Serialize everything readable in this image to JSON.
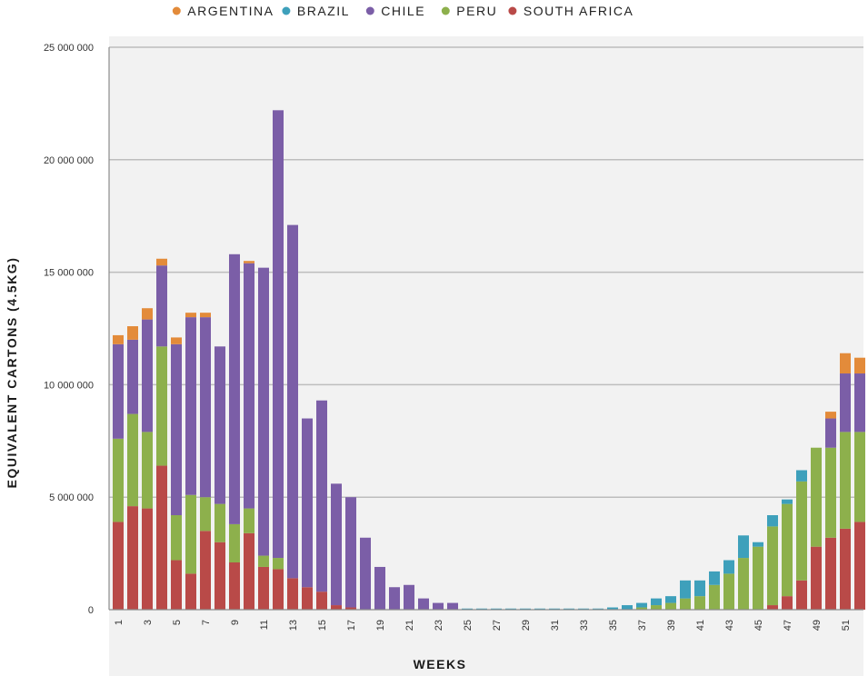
{
  "chart_data": {
    "type": "bar",
    "stacked": true,
    "xlabel": "WEEKS",
    "ylabel": "EQUIVALENT CARTONS (4.5KG)",
    "ylim": [
      0,
      25000000
    ],
    "yticks": [
      0,
      5000000,
      10000000,
      15000000,
      20000000,
      25000000
    ],
    "ytick_labels": [
      "0",
      "5 000 000",
      "10 000 000",
      "15 000 000",
      "20 000 000",
      "25 000 000"
    ],
    "grid": "horizontal",
    "legend_position": "top",
    "categories": [
      "1",
      "2",
      "3",
      "4",
      "5",
      "6",
      "7",
      "8",
      "9",
      "10",
      "11",
      "12",
      "13",
      "14",
      "15",
      "16",
      "17",
      "18",
      "19",
      "20",
      "21",
      "22",
      "23",
      "24",
      "25",
      "26",
      "27",
      "28",
      "29",
      "30",
      "31",
      "32",
      "33",
      "34",
      "35",
      "36",
      "37",
      "38",
      "39",
      "40",
      "41",
      "42",
      "43",
      "44",
      "45",
      "46",
      "47",
      "48",
      "49",
      "50",
      "51",
      "52"
    ],
    "x_tick_labels": [
      "1",
      "3",
      "5",
      "7",
      "9",
      "11",
      "13",
      "15",
      "17",
      "19",
      "21",
      "23",
      "25",
      "27",
      "29",
      "31",
      "33",
      "35",
      "37",
      "39",
      "41",
      "43",
      "45",
      "47",
      "49",
      "51"
    ],
    "series": [
      {
        "name": "SOUTH AFRICA",
        "color": "#b94a48",
        "values": [
          3900000,
          4600000,
          4500000,
          6400000,
          2200000,
          1600000,
          3500000,
          3000000,
          2100000,
          3400000,
          1900000,
          1800000,
          1400000,
          1000000,
          800000,
          200000,
          100000,
          0,
          0,
          0,
          0,
          0,
          0,
          0,
          0,
          0,
          0,
          0,
          0,
          0,
          0,
          0,
          0,
          0,
          0,
          0,
          0,
          0,
          0,
          0,
          0,
          0,
          0,
          0,
          0,
          200000,
          600000,
          1300000,
          2800000,
          3200000,
          3600000,
          3900000
        ]
      },
      {
        "name": "PERU",
        "color": "#8db04c",
        "values": [
          3700000,
          4100000,
          3400000,
          5300000,
          2000000,
          3500000,
          1500000,
          1700000,
          1700000,
          1100000,
          500000,
          500000,
          0,
          0,
          0,
          0,
          0,
          0,
          0,
          0,
          0,
          0,
          0,
          0,
          0,
          0,
          0,
          0,
          0,
          0,
          0,
          0,
          0,
          0,
          0,
          0,
          100000,
          200000,
          300000,
          500000,
          600000,
          1100000,
          1600000,
          2300000,
          2800000,
          3500000,
          4100000,
          4400000,
          4400000,
          4000000,
          4300000,
          4000000
        ]
      },
      {
        "name": "CHILE",
        "color": "#7b5ea7",
        "values": [
          4200000,
          3300000,
          5000000,
          3600000,
          7600000,
          7900000,
          8000000,
          7000000,
          12000000,
          10900000,
          12800000,
          19900000,
          15700000,
          7500000,
          8500000,
          5400000,
          4900000,
          3200000,
          1900000,
          1000000,
          1100000,
          500000,
          300000,
          300000,
          0,
          0,
          0,
          0,
          0,
          0,
          0,
          0,
          0,
          0,
          0,
          0,
          0,
          0,
          0,
          0,
          0,
          0,
          0,
          0,
          0,
          0,
          0,
          0,
          0,
          1300000,
          2600000,
          2600000
        ]
      },
      {
        "name": "BRAZIL",
        "color": "#3ea0bb",
        "values": [
          0,
          0,
          0,
          0,
          0,
          0,
          0,
          0,
          0,
          0,
          0,
          0,
          0,
          0,
          0,
          0,
          0,
          0,
          0,
          0,
          0,
          0,
          0,
          0,
          50000,
          50000,
          50000,
          50000,
          50000,
          50000,
          50000,
          50000,
          50000,
          50000,
          100000,
          200000,
          200000,
          300000,
          300000,
          800000,
          700000,
          600000,
          600000,
          1000000,
          200000,
          500000,
          200000,
          500000,
          0,
          0,
          0,
          0
        ]
      },
      {
        "name": "ARGENTINA",
        "color": "#e38b3a",
        "values": [
          400000,
          600000,
          500000,
          300000,
          300000,
          200000,
          200000,
          0,
          0,
          100000,
          0,
          0,
          0,
          0,
          0,
          0,
          0,
          0,
          0,
          0,
          0,
          0,
          0,
          0,
          0,
          0,
          0,
          0,
          0,
          0,
          0,
          0,
          0,
          0,
          0,
          0,
          0,
          0,
          0,
          0,
          0,
          0,
          0,
          0,
          0,
          0,
          0,
          0,
          0,
          300000,
          900000,
          700000
        ]
      }
    ],
    "legend_order": [
      "ARGENTINA",
      "BRAZIL",
      "CHILE",
      "PERU",
      "SOUTH AFRICA"
    ]
  }
}
